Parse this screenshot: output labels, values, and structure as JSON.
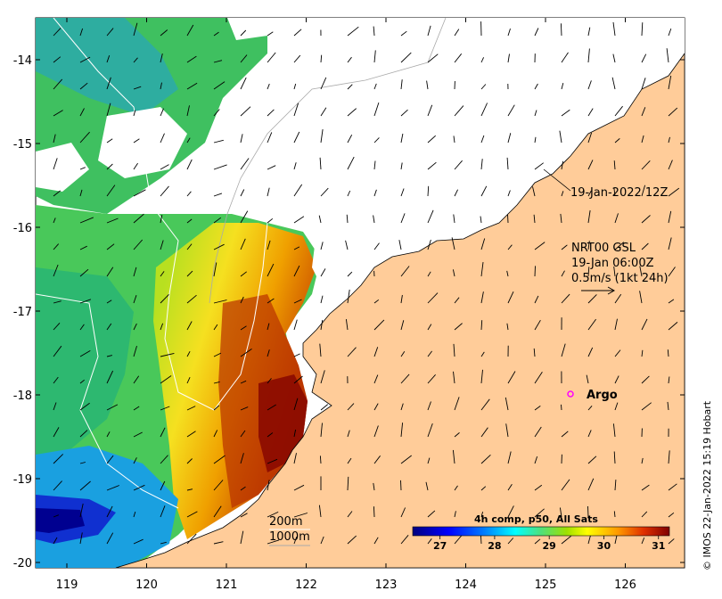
{
  "map": {
    "lon_ticks": [
      "119",
      "120",
      "121",
      "122",
      "123",
      "124",
      "125",
      "126"
    ],
    "lat_ticks": [
      "-14",
      "-15",
      "-16",
      "-17",
      "-18",
      "-19",
      "-20"
    ],
    "lon_range": [
      118.6,
      126.8
    ],
    "lat_range": [
      -13.55,
      -20.1
    ],
    "land_color": "#ffcc99",
    "coast_color": "#000000",
    "annotations": {
      "date_label": "19-Jan-2022 12Z",
      "current_model": "NRT00 GSL",
      "current_time": "19-Jan 06:00Z",
      "current_scale": "0.5m/s (1kt 24h)",
      "argo_label": "Argo",
      "argo_marker_color": "#ff00ff",
      "depth_200": "200m",
      "depth_1000": "1000m"
    },
    "credit": "© IMOS 22-Jan-2022 15:19 Hobart"
  },
  "colorbar": {
    "title": "4h comp, p50, All Sats",
    "ticks": [
      "27",
      "28",
      "29",
      "30",
      "31"
    ],
    "range": [
      26.5,
      31.2
    ],
    "colors": [
      "#00007f",
      "#0000ff",
      "#007fff",
      "#00ffff",
      "#7fff7f",
      "#ffff00",
      "#ff7f00",
      "#ff0000",
      "#7f0000"
    ]
  }
}
